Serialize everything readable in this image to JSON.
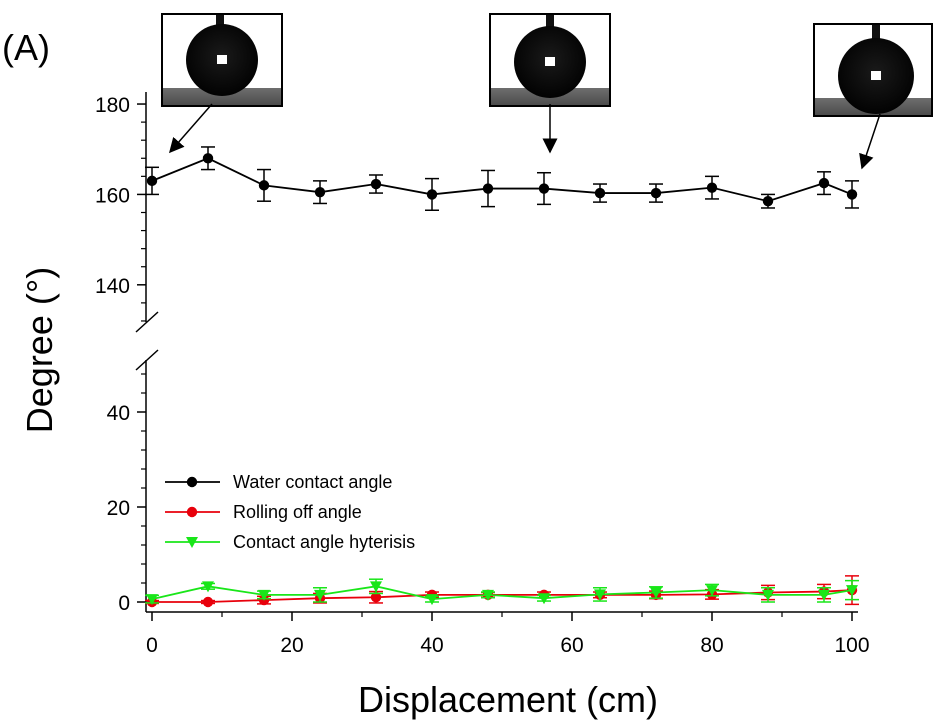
{
  "panel_label": "(A)",
  "chart_data": {
    "type": "line",
    "xlabel": "Displacement (cm)",
    "ylabel": "Degree (°)",
    "xlim": [
      0,
      100
    ],
    "x_ticks": [
      0,
      20,
      40,
      60,
      80,
      100
    ],
    "y_ticks_upper": [
      140,
      160,
      180
    ],
    "y_ticks_lower": [
      0,
      20,
      40
    ],
    "axis_break": true,
    "legend_position": "lower-left",
    "grid": false,
    "x": [
      0,
      8,
      16,
      24,
      32,
      40,
      48,
      56,
      64,
      72,
      80,
      88,
      96,
      100
    ],
    "series": [
      {
        "name": "Water contact angle",
        "color": "#000000",
        "marker": "circle",
        "values": [
          163,
          168,
          162,
          160.5,
          162.3,
          160,
          161.3,
          161.3,
          160.3,
          160.3,
          161.5,
          158.5,
          162.5,
          160
        ],
        "errors": [
          3,
          2.5,
          3.5,
          2.5,
          2,
          3.5,
          4,
          3.5,
          2,
          2,
          2.5,
          1.5,
          2.5,
          3
        ]
      },
      {
        "name": "Rolling off angle",
        "color": "#e8000b",
        "marker": "circle",
        "values": [
          0,
          0,
          0.4,
          0.8,
          1,
          1.5,
          1.5,
          1.5,
          1.5,
          1.5,
          1.6,
          2,
          2.2,
          2.5
        ],
        "errors": [
          0.3,
          0.3,
          0.8,
          1,
          1.2,
          0.6,
          0.5,
          0.6,
          0.6,
          0.8,
          1,
          1.5,
          1.5,
          3
        ]
      },
      {
        "name": "Contact angle hyterisis",
        "color": "#19e619",
        "marker": "triangle-down",
        "values": [
          0.6,
          3.3,
          1.5,
          1.5,
          3.3,
          0.6,
          1.5,
          0.8,
          1.6,
          2,
          2.5,
          1.5,
          1.5,
          2.5
        ],
        "errors": [
          0.8,
          0.6,
          0.8,
          1.5,
          1.5,
          0.6,
          0.6,
          0.6,
          1.4,
          1.2,
          1.2,
          1.5,
          1.5,
          2
        ]
      }
    ],
    "inset_photos": [
      {
        "name": "droplet-photo-start",
        "points_to_x": 0
      },
      {
        "name": "droplet-photo-middle",
        "points_to_x": 56
      },
      {
        "name": "droplet-photo-end",
        "points_to_x": 100
      }
    ]
  }
}
